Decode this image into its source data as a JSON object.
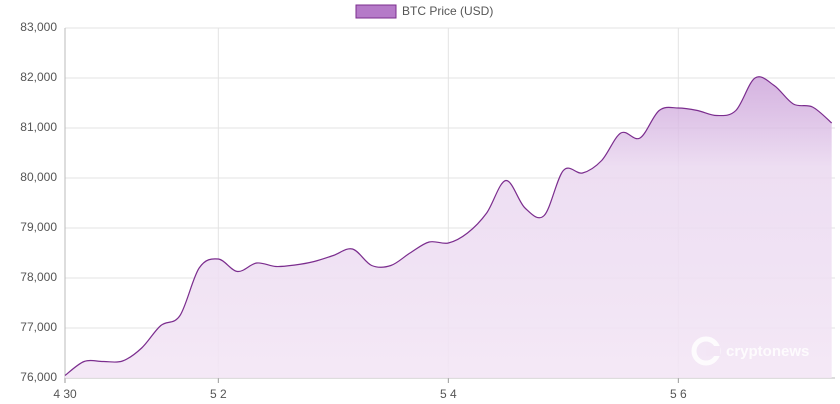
{
  "chart_data": {
    "type": "line",
    "categories": [
      "4 30",
      null,
      null,
      null,
      null,
      null,
      null,
      null,
      "5 2",
      null,
      null,
      null,
      null,
      null,
      null,
      null,
      null,
      null,
      null,
      null,
      "5 4",
      null,
      null,
      null,
      null,
      null,
      null,
      null,
      null,
      null,
      null,
      null,
      "5 6",
      null,
      null,
      null,
      null,
      null,
      null,
      null,
      null
    ],
    "series": [
      {
        "name": "BTC Price (USD)",
        "color": "#7b2d8e",
        "fill": "#b57ac8",
        "values": [
          76050,
          76330,
          76330,
          76340,
          76600,
          77050,
          77250,
          78200,
          78380,
          78130,
          78300,
          78230,
          78260,
          78330,
          78450,
          78580,
          78250,
          78250,
          78500,
          78720,
          78700,
          78900,
          79300,
          79950,
          79400,
          79250,
          80150,
          80100,
          80350,
          80900,
          80800,
          81350,
          81400,
          81350,
          81250,
          81350,
          82000,
          81850,
          81480,
          81420,
          81100
        ]
      }
    ],
    "ylim": [
      76000,
      83000
    ],
    "yticks": [
      {
        "value": 76000,
        "label": "76,000"
      },
      {
        "value": 77000,
        "label": "77,000"
      },
      {
        "value": 78000,
        "label": "78,000"
      },
      {
        "value": 79000,
        "label": "79,000"
      },
      {
        "value": 80000,
        "label": "80,000"
      },
      {
        "value": 81000,
        "label": "81,000"
      },
      {
        "value": 82000,
        "label": "82,000"
      },
      {
        "value": 83000,
        "label": "83,000"
      }
    ],
    "grid": true,
    "legend": "top",
    "watermark": "cryptonews"
  }
}
